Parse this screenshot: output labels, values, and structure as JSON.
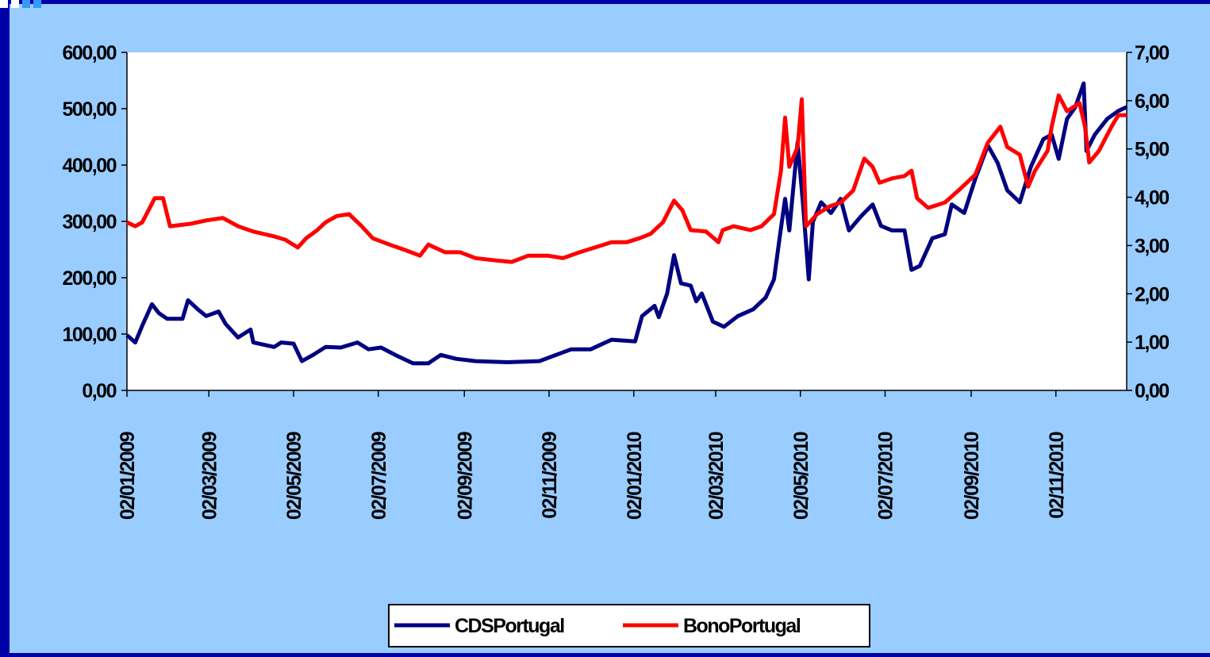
{
  "chart_data": {
    "type": "line",
    "xlim": [
      "02/01/2009",
      "23/12/2010"
    ],
    "xticks": [
      "02/01/2009",
      "02/03/2009",
      "02/05/2009",
      "02/07/2009",
      "02/09/2009",
      "02/11/2009",
      "02/01/2010",
      "02/03/2010",
      "02/05/2010",
      "02/07/2010",
      "02/09/2010",
      "02/11/2010"
    ],
    "ylim": [
      0,
      600
    ],
    "yticks": [
      {
        "value": 0,
        "label": "0,00"
      },
      {
        "value": 100,
        "label": "100,00"
      },
      {
        "value": 200,
        "label": "200,00"
      },
      {
        "value": 300,
        "label": "300,00"
      },
      {
        "value": 400,
        "label": "400,00"
      },
      {
        "value": 500,
        "label": "500,00"
      },
      {
        "value": 600,
        "label": "600,00"
      }
    ],
    "y2lim": [
      0,
      7
    ],
    "y2ticks": [
      {
        "value": 0,
        "label": "0,00"
      },
      {
        "value": 1,
        "label": "1,00"
      },
      {
        "value": 2,
        "label": "2,00"
      },
      {
        "value": 3,
        "label": "3,00"
      },
      {
        "value": 4,
        "label": "4,00"
      },
      {
        "value": 5,
        "label": "5,00"
      },
      {
        "value": 6,
        "label": "6,00"
      },
      {
        "value": 7,
        "label": "7,00"
      }
    ],
    "legend": "bottom",
    "series": [
      {
        "name": "CDSPortugal",
        "color": "#000080",
        "axis": "y",
        "x": [
          "02/01/2009",
          "08/01/2009",
          "13/01/2009",
          "20/01/2009",
          "25/01/2009",
          "31/01/2009",
          "11/02/2009",
          "15/02/2009",
          "22/02/2009",
          "28/02/2009",
          "09/03/2009",
          "14/03/2009",
          "23/03/2009",
          "01/04/2009",
          "03/04/2009",
          "18/04/2009",
          "23/04/2009",
          "02/05/2009",
          "08/05/2009",
          "16/05/2009",
          "25/05/2009",
          "05/06/2009",
          "17/06/2009",
          "25/06/2009",
          "04/07/2009",
          "15/07/2009",
          "27/07/2009",
          "07/08/2009",
          "16/08/2009",
          "27/08/2009",
          "10/09/2009",
          "03/10/2009",
          "26/10/2009",
          "07/11/2009",
          "18/11/2009",
          "02/12/2009",
          "17/12/2009",
          "03/01/2010",
          "08/01/2010",
          "17/01/2010",
          "20/01/2010",
          "26/01/2010",
          "31/01/2010",
          "05/02/2010",
          "12/02/2010",
          "16/02/2010",
          "20/02/2010",
          "28/02/2010",
          "08/03/2010",
          "18/03/2010",
          "29/03/2010",
          "07/04/2010",
          "13/04/2010",
          "17/04/2010",
          "21/04/2010",
          "24/04/2010",
          "30/04/2010",
          "04/05/2010",
          "08/05/2010",
          "11/05/2010",
          "17/05/2010",
          "24/05/2010",
          "31/05/2010",
          "06/06/2010",
          "15/06/2010",
          "23/06/2010",
          "29/06/2010",
          "07/07/2010",
          "16/07/2010",
          "21/07/2010",
          "27/07/2010",
          "05/08/2010",
          "14/08/2010",
          "19/08/2010",
          "28/08/2010",
          "05/09/2010",
          "14/09/2010",
          "21/09/2010",
          "28/09/2010",
          "07/10/2010",
          "15/10/2010",
          "24/10/2010",
          "30/10/2010",
          "04/11/2010",
          "10/11/2010",
          "16/11/2010",
          "22/11/2010",
          "24/11/2010",
          "30/11/2010",
          "09/12/2010",
          "17/12/2010",
          "23/12/2010"
        ],
        "values": [
          98,
          85,
          115,
          153,
          137,
          127,
          127,
          160,
          144,
          132,
          140,
          118,
          94,
          108,
          85,
          77,
          85,
          83,
          52,
          63,
          77,
          76,
          85,
          73,
          76,
          62,
          48,
          48,
          63,
          56,
          52,
          50,
          52,
          63,
          73,
          73,
          90,
          87,
          132,
          150,
          130,
          172,
          240,
          190,
          186,
          158,
          172,
          122,
          113,
          132,
          144,
          165,
          197,
          270,
          340,
          284,
          440,
          327,
          197,
          299,
          334,
          315,
          340,
          284,
          310,
          330,
          292,
          284,
          284,
          214,
          221,
          270,
          277,
          330,
          315,
          376,
          435,
          404,
          355,
          334,
          397,
          446,
          454,
          411,
          482,
          503,
          545,
          425,
          454,
          482,
          496,
          503
        ]
      },
      {
        "name": "BonoPortugal",
        "color": "#ff0000",
        "axis": "y2",
        "x": [
          "02/01/2009",
          "08/01/2009",
          "13/01/2009",
          "22/01/2009",
          "28/01/2009",
          "02/02/2009",
          "17/02/2009",
          "28/02/2009",
          "12/03/2009",
          "23/03/2009",
          "03/04/2009",
          "18/04/2009",
          "26/04/2009",
          "05/05/2009",
          "11/05/2009",
          "19/05/2009",
          "25/05/2009",
          "02/06/2009",
          "11/06/2009",
          "20/06/2009",
          "28/06/2009",
          "10/07/2009",
          "21/07/2009",
          "01/08/2009",
          "07/08/2009",
          "19/08/2009",
          "30/08/2009",
          "10/09/2009",
          "25/09/2009",
          "06/10/2009",
          "18/10/2009",
          "01/11/2009",
          "12/11/2009",
          "24/11/2009",
          "05/12/2009",
          "17/12/2009",
          "28/12/2009",
          "06/01/2010",
          "14/01/2010",
          "23/01/2010",
          "31/01/2010",
          "06/02/2010",
          "12/02/2010",
          "23/02/2010",
          "04/03/2010",
          "07/03/2010",
          "15/03/2010",
          "27/03/2010",
          "04/04/2010",
          "13/04/2010",
          "18/04/2010",
          "21/04/2010",
          "24/04/2010",
          "30/04/2010",
          "03/05/2010",
          "06/05/2010",
          "14/05/2010",
          "23/05/2010",
          "31/05/2010",
          "09/06/2010",
          "17/06/2010",
          "23/06/2010",
          "28/06/2010",
          "07/07/2010",
          "16/07/2010",
          "21/07/2010",
          "25/07/2010",
          "02/08/2010",
          "14/08/2010",
          "25/08/2010",
          "05/09/2010",
          "14/09/2010",
          "23/09/2010",
          "28/09/2010",
          "07/10/2010",
          "13/10/2010",
          "18/10/2010",
          "27/10/2010",
          "30/10/2010",
          "04/11/2010",
          "10/11/2010",
          "19/11/2010",
          "23/11/2010",
          "26/11/2010",
          "03/12/2010",
          "12/12/2010",
          "17/12/2010",
          "23/12/2010"
        ],
        "values": [
          3.48,
          3.4,
          3.48,
          3.98,
          3.98,
          3.4,
          3.45,
          3.52,
          3.57,
          3.4,
          3.29,
          3.19,
          3.12,
          2.96,
          3.15,
          3.32,
          3.48,
          3.61,
          3.65,
          3.4,
          3.15,
          3.02,
          2.91,
          2.79,
          3.02,
          2.86,
          2.86,
          2.74,
          2.69,
          2.66,
          2.79,
          2.79,
          2.74,
          2.86,
          2.96,
          3.07,
          3.07,
          3.15,
          3.24,
          3.48,
          3.93,
          3.73,
          3.32,
          3.29,
          3.07,
          3.32,
          3.4,
          3.32,
          3.4,
          3.65,
          4.55,
          5.65,
          4.63,
          5.04,
          6.03,
          3.4,
          3.65,
          3.81,
          3.89,
          4.14,
          4.8,
          4.63,
          4.3,
          4.39,
          4.44,
          4.55,
          3.98,
          3.78,
          3.89,
          4.17,
          4.47,
          5.13,
          5.46,
          5.04,
          4.88,
          4.22,
          4.55,
          4.96,
          5.46,
          6.11,
          5.78,
          5.95,
          5.46,
          4.72,
          4.96,
          5.46,
          5.7,
          5.7
        ]
      }
    ]
  }
}
